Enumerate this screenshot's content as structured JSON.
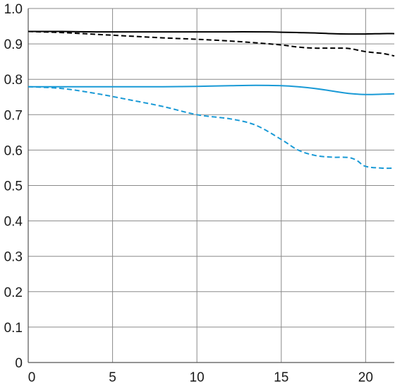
{
  "chart_data": {
    "type": "line",
    "title": "",
    "xlabel": "",
    "ylabel": "",
    "xlim": [
      0,
      21.7
    ],
    "ylim": [
      0,
      1.0
    ],
    "grid": true,
    "x_ticks": [
      "0",
      "5",
      "10",
      "15",
      "20"
    ],
    "y_ticks": [
      "0",
      "0.1",
      "0.2",
      "0.3",
      "0.4",
      "0.5",
      "0.6",
      "0.7",
      "0.8",
      "0.9",
      "1.0"
    ],
    "series": [
      {
        "color": "#000000",
        "dash": "solid",
        "x": [
          0,
          2,
          4,
          6,
          8,
          10,
          12,
          14,
          15,
          16,
          17,
          18,
          19,
          20,
          21,
          21.7
        ],
        "y": [
          0.935,
          0.935,
          0.934,
          0.934,
          0.934,
          0.934,
          0.934,
          0.934,
          0.933,
          0.932,
          0.931,
          0.929,
          0.928,
          0.928,
          0.929,
          0.929
        ]
      },
      {
        "color": "#000000",
        "dash": "dashed",
        "x": [
          0,
          2,
          4,
          6,
          8,
          10,
          12,
          13.5,
          15,
          16,
          17,
          18,
          19,
          20,
          21,
          21.7
        ],
        "y": [
          0.935,
          0.932,
          0.927,
          0.922,
          0.917,
          0.913,
          0.908,
          0.903,
          0.897,
          0.891,
          0.888,
          0.888,
          0.887,
          0.878,
          0.873,
          0.866
        ]
      },
      {
        "color": "#1a9ad6",
        "dash": "solid",
        "x": [
          0,
          2,
          4,
          6,
          8,
          10,
          12,
          13.5,
          15,
          16,
          17,
          18,
          19,
          20,
          21,
          21.7
        ],
        "y": [
          0.779,
          0.779,
          0.779,
          0.779,
          0.779,
          0.78,
          0.782,
          0.783,
          0.782,
          0.779,
          0.774,
          0.767,
          0.76,
          0.757,
          0.758,
          0.759
        ]
      },
      {
        "color": "#1a9ad6",
        "dash": "dashed",
        "x": [
          0,
          2,
          4,
          6,
          8,
          10,
          12,
          13.5,
          15,
          16,
          17,
          18,
          19,
          19.5,
          20,
          21,
          21.7
        ],
        "y": [
          0.779,
          0.774,
          0.76,
          0.742,
          0.723,
          0.7,
          0.688,
          0.67,
          0.63,
          0.6,
          0.585,
          0.58,
          0.579,
          0.57,
          0.554,
          0.549,
          0.549
        ]
      }
    ]
  }
}
